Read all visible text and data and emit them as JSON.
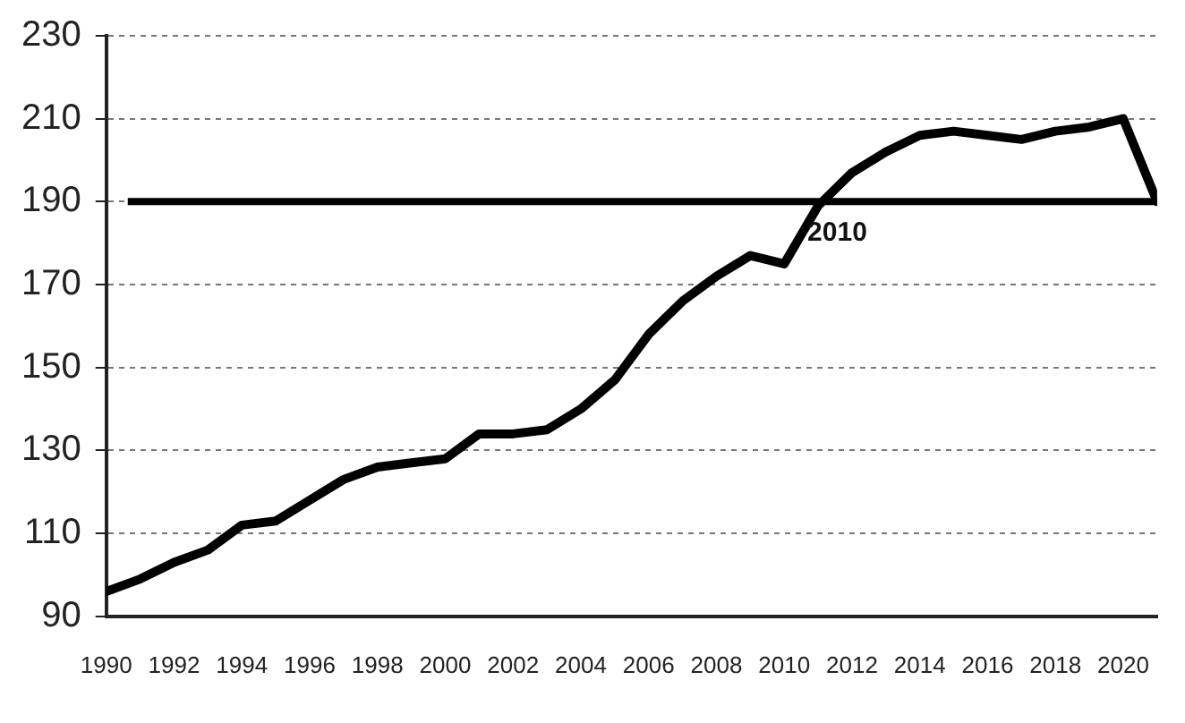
{
  "chart_data": {
    "type": "line",
    "x": [
      1990,
      1991,
      1992,
      1993,
      1994,
      1995,
      1996,
      1997,
      1998,
      1999,
      2000,
      2001,
      2002,
      2003,
      2004,
      2005,
      2006,
      2007,
      2008,
      2009,
      2010,
      2011,
      2012,
      2013,
      2014,
      2015,
      2016,
      2017,
      2018,
      2019,
      2020,
      2021
    ],
    "series": [
      {
        "color": "#000000",
        "values": [
          96,
          99,
          103,
          106,
          112,
          113,
          118,
          123,
          126,
          127,
          128,
          134,
          134,
          135,
          140,
          147,
          158,
          166,
          172,
          177,
          175,
          189,
          197,
          202,
          206,
          207,
          206,
          205,
          207,
          208,
          210,
          190
        ]
      }
    ],
    "xlim": [
      1990,
      2021
    ],
    "xticks": [
      1990,
      1992,
      1994,
      1996,
      1998,
      2000,
      2002,
      2004,
      2006,
      2008,
      2010,
      2012,
      2014,
      2016,
      2018,
      2020
    ],
    "ylim": [
      90,
      230
    ],
    "yticks": [
      90,
      110,
      130,
      150,
      170,
      190,
      210,
      230
    ],
    "grid": "y",
    "legend": false,
    "ref_lines": [
      {
        "axis": "y",
        "value": 190,
        "color": "#000000"
      }
    ],
    "annotations": [
      {
        "text": "2010",
        "x": 2011,
        "y": 190
      }
    ]
  }
}
